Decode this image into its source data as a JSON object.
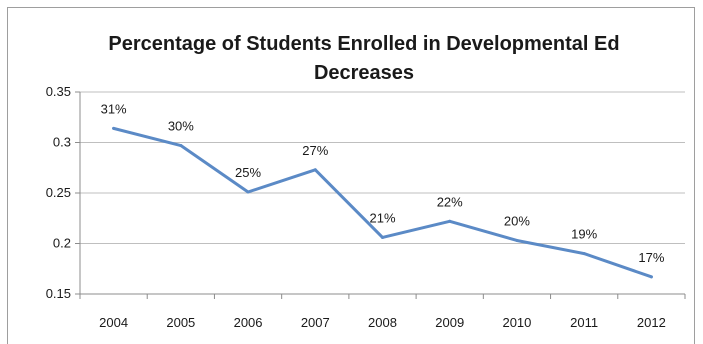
{
  "chart_data": {
    "type": "line",
    "title_lines": [
      "Percentage of Students Enrolled in Developmental Ed",
      "Decreases"
    ],
    "categories": [
      "2004",
      "2005",
      "2006",
      "2007",
      "2008",
      "2009",
      "2010",
      "2011",
      "2012"
    ],
    "series": [
      {
        "values": [
          0.314,
          0.297,
          0.251,
          0.273,
          0.206,
          0.222,
          0.203,
          0.19,
          0.167
        ],
        "labels": [
          "31%",
          "30%",
          "25%",
          "27%",
          "21%",
          "22%",
          "20%",
          "19%",
          "17%"
        ],
        "color": "#5b8ac6"
      }
    ],
    "ylim": [
      0.15,
      0.35
    ],
    "yticks": [
      0.15,
      0.2,
      0.25,
      0.3,
      0.35
    ],
    "ytick_labels": [
      "0.15",
      "0.2",
      "0.25",
      "0.3",
      "0.35"
    ],
    "grid": "horizontal",
    "grid_color": "#bfbfbf",
    "xlabel": "",
    "ylabel": ""
  }
}
